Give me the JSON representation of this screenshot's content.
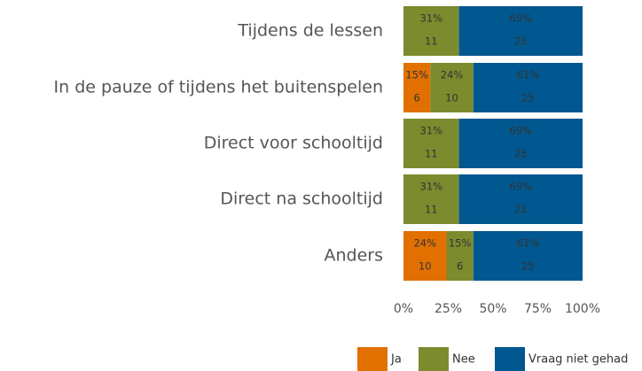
{
  "chart_data": {
    "type": "stacked-bar-horizontal",
    "categories": [
      "Tijdens de lessen",
      "In de pauze of tijdens het buitenspelen",
      "Direct voor schooltijd",
      "Direct na schooltijd",
      "Anders"
    ],
    "series": [
      {
        "name": "Ja",
        "color": "#e17000",
        "values": [
          0,
          15,
          0,
          0,
          24
        ],
        "value_labels": [
          null,
          "15%",
          null,
          null,
          "24%"
        ],
        "counts": [
          null,
          6,
          null,
          null,
          10
        ]
      },
      {
        "name": "Nee",
        "color": "#7b8b2d",
        "values": [
          31,
          24,
          31,
          31,
          15
        ],
        "value_labels": [
          "31%",
          "24%",
          "31%",
          "31%",
          "15%"
        ],
        "counts": [
          11,
          10,
          11,
          11,
          6
        ]
      },
      {
        "name": "Vraag niet gehad",
        "color": "#01578f",
        "values": [
          69,
          61,
          69,
          69,
          61
        ],
        "value_labels": [
          "69%",
          "61%",
          "69%",
          "69%",
          "61%"
        ],
        "counts": [
          25,
          25,
          25,
          25,
          25
        ]
      }
    ],
    "xlim": [
      0,
      100
    ],
    "xticks": [
      {
        "value": 0,
        "label": "0%"
      },
      {
        "value": 25,
        "label": "25%"
      },
      {
        "value": 50,
        "label": "50%"
      },
      {
        "value": 75,
        "label": "75%"
      },
      {
        "value": 100,
        "label": "100%"
      }
    ]
  }
}
